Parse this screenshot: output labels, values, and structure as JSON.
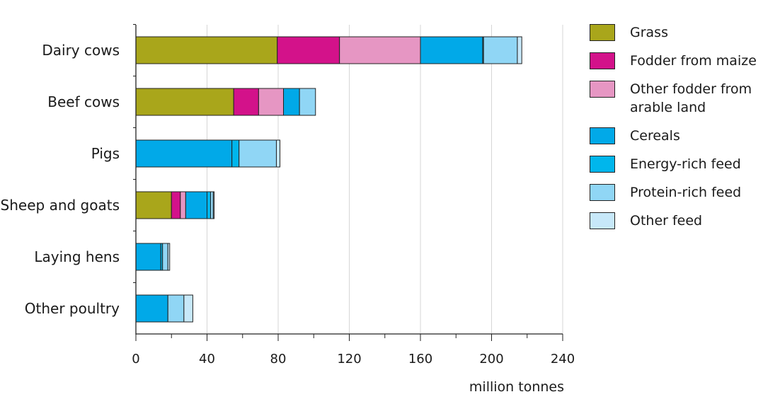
{
  "chart_data": {
    "type": "bar",
    "orientation": "horizontal",
    "stacked": true,
    "title": "",
    "xlabel": "million tonnes",
    "ylabel": "",
    "xlim": [
      0,
      240
    ],
    "x_ticks": [
      0,
      40,
      80,
      120,
      160,
      200,
      240
    ],
    "x_tick_labels": [
      "0",
      "40",
      "80",
      "120",
      "160",
      "200",
      "240"
    ],
    "grid": "vertical",
    "legend_position": "right",
    "categories": [
      "Dairy cows",
      "Beef cows",
      "Pigs",
      "Sheep and goats",
      "Laying hens",
      "Other poultry"
    ],
    "series": [
      {
        "name": "Grass",
        "color": "#a9a61b",
        "values": [
          79.5,
          55,
          0,
          20,
          0,
          0
        ]
      },
      {
        "name": "Fodder from maize",
        "color": "#d3128a",
        "values": [
          35,
          14,
          0,
          5,
          0,
          0
        ]
      },
      {
        "name": "Other fodder from arable land",
        "color": "#e696c3",
        "values": [
          45.5,
          14,
          0,
          3,
          0,
          0
        ]
      },
      {
        "name": "Cereals",
        "color": "#01a9e8",
        "values": [
          35,
          9,
          54,
          12,
          14,
          18
        ]
      },
      {
        "name": "Energy-rich feed",
        "color": "#00b6ec",
        "values": [
          0.5,
          0,
          4,
          2,
          1,
          0
        ]
      },
      {
        "name": "Protein-rich feed",
        "color": "#90d6f5",
        "values": [
          19,
          9,
          21,
          1.5,
          3,
          9
        ]
      },
      {
        "name": "Other feed",
        "color": "#c7e8f9",
        "values": [
          2.5,
          0,
          2,
          0.5,
          1,
          5
        ]
      }
    ]
  }
}
